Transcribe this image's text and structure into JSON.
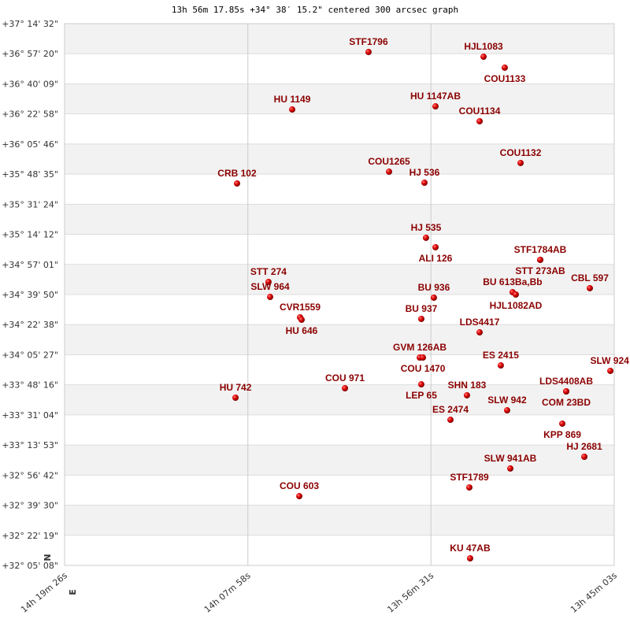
{
  "chart_data": {
    "type": "scatter",
    "title": "13h 56m 17.85s +34° 38′ 15.2\" centered 300 arcsec graph",
    "x_unit": "RA (hours)",
    "y_unit": "Dec (degrees)",
    "xlim": [
      14.32389,
      13.75083
    ],
    "ylim": [
      32.0856,
      37.2422
    ],
    "grid": true,
    "x_ticks": [
      {
        "value": 14.32389,
        "label": "14h 19m 26s"
      },
      {
        "value": 14.13278,
        "label": "14h 07m 58s"
      },
      {
        "value": 13.94194,
        "label": "13h 56m 31s"
      },
      {
        "value": 13.75083,
        "label": "13h 45m 03s"
      }
    ],
    "y_ticks": [
      "+37° 14' 32\"",
      "+36° 57' 20\"",
      "+36° 40' 09\"",
      "+36° 22' 58\"",
      "+36° 05' 46\"",
      "+35° 48' 35\"",
      "+35° 31' 24\"",
      "+35° 14' 12\"",
      "+34° 57' 01\"",
      "+34° 39' 50\"",
      "+34° 22' 38\"",
      "+34° 05' 27\"",
      "+33° 48' 16\"",
      "+33° 31' 04\"",
      "+33° 13' 53\"",
      "+32° 56' 42\"",
      "+32° 39' 30\"",
      "+32° 22' 19\"",
      "+32° 05' 08\""
    ],
    "compass": {
      "north": "N",
      "east": "E"
    },
    "colors": {
      "point": "#cc0000",
      "label": "#8b0000",
      "band": "#f2f2f2",
      "grid": "#dddddd"
    },
    "points": [
      {
        "name": "STF1796",
        "ra": 14.007,
        "dec": 36.972
      },
      {
        "name": "HJL1083",
        "ra": 13.8871,
        "dec": 36.927
      },
      {
        "name": "COU1133",
        "ra": 13.865,
        "dec": 36.823
      },
      {
        "name": "HU 1149",
        "ra": 14.0866,
        "dec": 36.425
      },
      {
        "name": "HU 1147AB",
        "ra": 13.9372,
        "dec": 36.455
      },
      {
        "name": "COU1134",
        "ra": 13.8912,
        "dec": 36.313
      },
      {
        "name": "COU1132",
        "ra": 13.8485,
        "dec": 35.916
      },
      {
        "name": "COU1265",
        "ra": 13.9856,
        "dec": 35.833
      },
      {
        "name": "HJ  536",
        "ra": 13.9487,
        "dec": 35.728
      },
      {
        "name": "CRB 102",
        "ra": 14.1441,
        "dec": 35.721
      },
      {
        "name": "HJ  535",
        "ra": 13.9471,
        "dec": 35.204
      },
      {
        "name": "ALI 126",
        "ra": 13.9372,
        "dec": 35.114
      },
      {
        "name": "STF1784AB",
        "ra": 13.828,
        "dec": 34.994
      },
      {
        "name": "STT 273AB",
        "ra": 13.828,
        "dec": 34.994
      },
      {
        "name": "STT 274",
        "ra": 14.1113,
        "dec": 34.784
      },
      {
        "name": "SLW 964",
        "ra": 14.1096,
        "dec": 34.641
      },
      {
        "name": "BU  613Ba,Bb",
        "ra": 13.8568,
        "dec": 34.686
      },
      {
        "name": "HJL1082AD",
        "ra": 13.8535,
        "dec": 34.664
      },
      {
        "name": "CBL 597",
        "ra": 13.7763,
        "dec": 34.724
      },
      {
        "name": "BU  936",
        "ra": 13.9389,
        "dec": 34.634
      },
      {
        "name": "CVR1559",
        "ra": 14.0784,
        "dec": 34.447
      },
      {
        "name": "HU  646",
        "ra": 14.0768,
        "dec": 34.424
      },
      {
        "name": "BU  937",
        "ra": 13.952,
        "dec": 34.432
      },
      {
        "name": "LDS4417",
        "ra": 13.8912,
        "dec": 34.304
      },
      {
        "name": "GVM 126AB",
        "ra": 13.9536,
        "dec": 34.064
      },
      {
        "name": "COU 1470",
        "ra": 13.9503,
        "dec": 34.064
      },
      {
        "name": "ES  2415",
        "ra": 13.8691,
        "dec": 33.989
      },
      {
        "name": "SLW 924",
        "ra": 13.7549,
        "dec": 33.937
      },
      {
        "name": "LEP  65",
        "ra": 13.952,
        "dec": 33.809
      },
      {
        "name": "COU 971",
        "ra": 14.0316,
        "dec": 33.772
      },
      {
        "name": "LDS4408AB",
        "ra": 13.8009,
        "dec": 33.742
      },
      {
        "name": "COM  23BD",
        "ra": 13.8009,
        "dec": 33.742
      },
      {
        "name": "HU  742",
        "ra": 14.1457,
        "dec": 33.682
      },
      {
        "name": "SHN 183",
        "ra": 13.9044,
        "dec": 33.705
      },
      {
        "name": "SLW 942",
        "ra": 13.8625,
        "dec": 33.562
      },
      {
        "name": "ES  2474",
        "ra": 13.9216,
        "dec": 33.472
      },
      {
        "name": "KPP 869",
        "ra": 13.805,
        "dec": 33.435
      },
      {
        "name": "HJ  2681",
        "ra": 13.782,
        "dec": 33.12
      },
      {
        "name": "SLW 941AB",
        "ra": 13.8592,
        "dec": 33.008
      },
      {
        "name": "STF1789",
        "ra": 13.9019,
        "dec": 32.828
      },
      {
        "name": "COU 603",
        "ra": 14.0792,
        "dec": 32.745
      },
      {
        "name": "KU   47AB",
        "ra": 13.9011,
        "dec": 32.153
      }
    ]
  }
}
